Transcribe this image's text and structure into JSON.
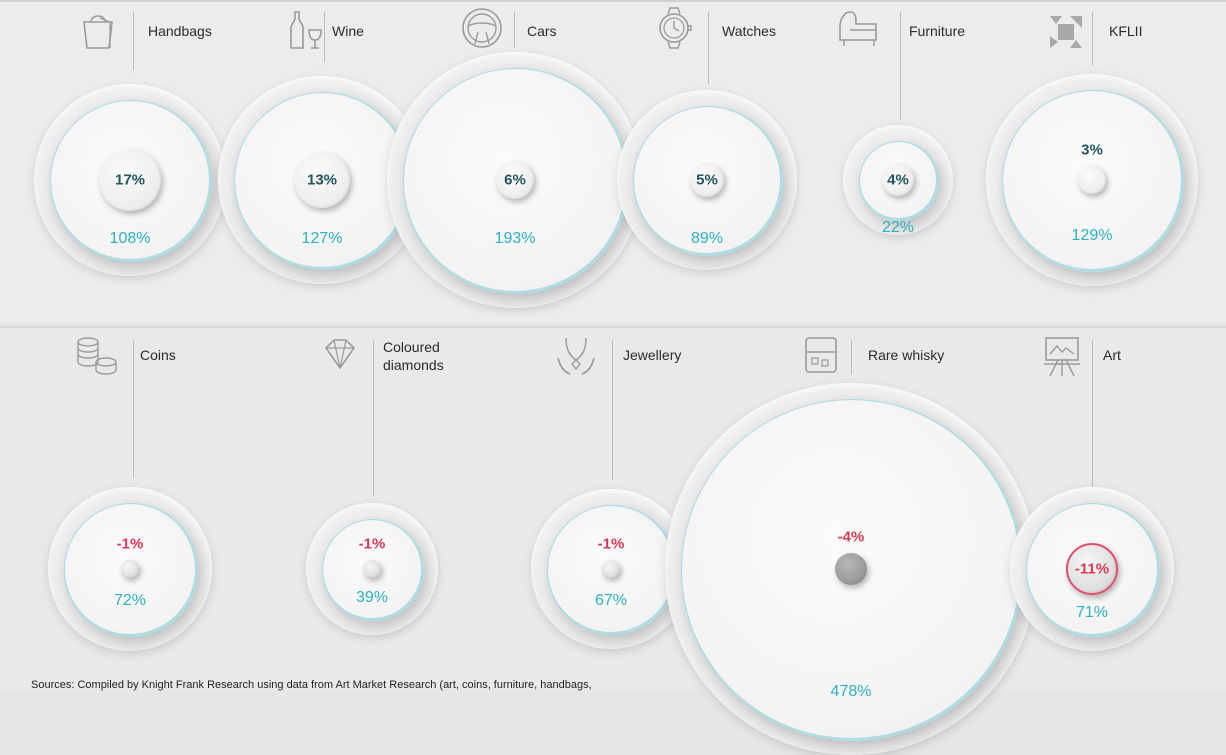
{
  "chart_data": {
    "type": "bubble",
    "value_key": [
      "inner value",
      "outer value"
    ],
    "categories": [
      {
        "name": "Handbags",
        "inner": 17,
        "outer": 108,
        "icon": "handbag-icon"
      },
      {
        "name": "Wine",
        "inner": 13,
        "outer": 127,
        "icon": "wine-icon"
      },
      {
        "name": "Cars",
        "inner": 6,
        "outer": 193,
        "icon": "steering-wheel-icon"
      },
      {
        "name": "Watches",
        "inner": 5,
        "outer": 89,
        "icon": "watch-icon"
      },
      {
        "name": "Furniture",
        "inner": 4,
        "outer": 22,
        "icon": "sofa-icon"
      },
      {
        "name": "KFLII",
        "inner": 3,
        "outer": 129,
        "icon": "kfl-logo-icon"
      },
      {
        "name": "Coins",
        "inner": -1,
        "outer": 72,
        "icon": "coins-icon"
      },
      {
        "name": "Coloured\ndiamonds",
        "inner": -1,
        "outer": 39,
        "icon": "diamond-icon"
      },
      {
        "name": "Jewellery",
        "inner": -1,
        "outer": 67,
        "icon": "necklace-icon"
      },
      {
        "name": "Rare whisky",
        "inner": -4,
        "outer": 478,
        "icon": "whisky-icon"
      },
      {
        "name": "Art",
        "inner": -11,
        "outer": 71,
        "icon": "easel-icon"
      }
    ],
    "inner_labels": [
      "17%",
      "13%",
      "6%",
      "5%",
      "4%",
      "3%",
      "-1%",
      "-1%",
      "-1%",
      "-4%",
      "-11%"
    ],
    "outer_labels": [
      "108%",
      "127%",
      "193%",
      "89%",
      "22%",
      "129%",
      "72%",
      "39%",
      "67%",
      "478%",
      "71%"
    ],
    "colors": {
      "positive_inner": "#20565e",
      "negative_inner": "#d83a55",
      "outer": "#2fb0c0"
    }
  },
  "sources": "Sources: Compiled by Knight Frank Research using data from Art Market Research (art, coins, furniture, handbags,"
}
